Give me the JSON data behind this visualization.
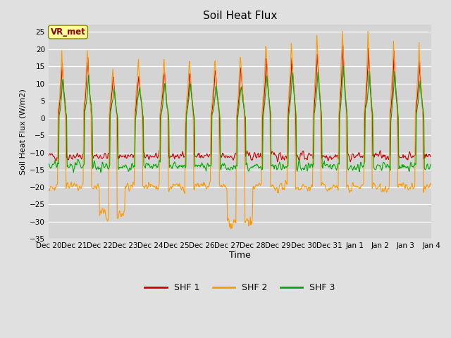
{
  "title": "Soil Heat Flux",
  "xlabel": "Time",
  "ylabel": "Soil Heat Flux (W/m2)",
  "ylim": [
    -35,
    27
  ],
  "yticks": [
    -35,
    -30,
    -25,
    -20,
    -15,
    -10,
    -5,
    0,
    5,
    10,
    15,
    20,
    25
  ],
  "background_color": "#e0e0e0",
  "plot_bg_color": "#d4d4d4",
  "shf1_color": "#cc0000",
  "shf2_color": "#ff9900",
  "shf3_color": "#00aa00",
  "legend_labels": [
    "SHF 1",
    "SHF 2",
    "SHF 3"
  ],
  "annotation_text": "VR_met",
  "annotation_color": "#880000",
  "annotation_bg": "#ffff99",
  "xtick_labels": [
    "Dec 20",
    "Dec 21",
    "Dec 22",
    "Dec 23",
    "Dec 24",
    "Dec 25",
    "Dec 26",
    "Dec 27",
    "Dec 28",
    "Dec 29",
    "Dec 30",
    "Dec 31",
    "Jan 1",
    "Jan 2",
    "Jan 3",
    "Jan 4"
  ],
  "n_days": 15,
  "seed": 42
}
